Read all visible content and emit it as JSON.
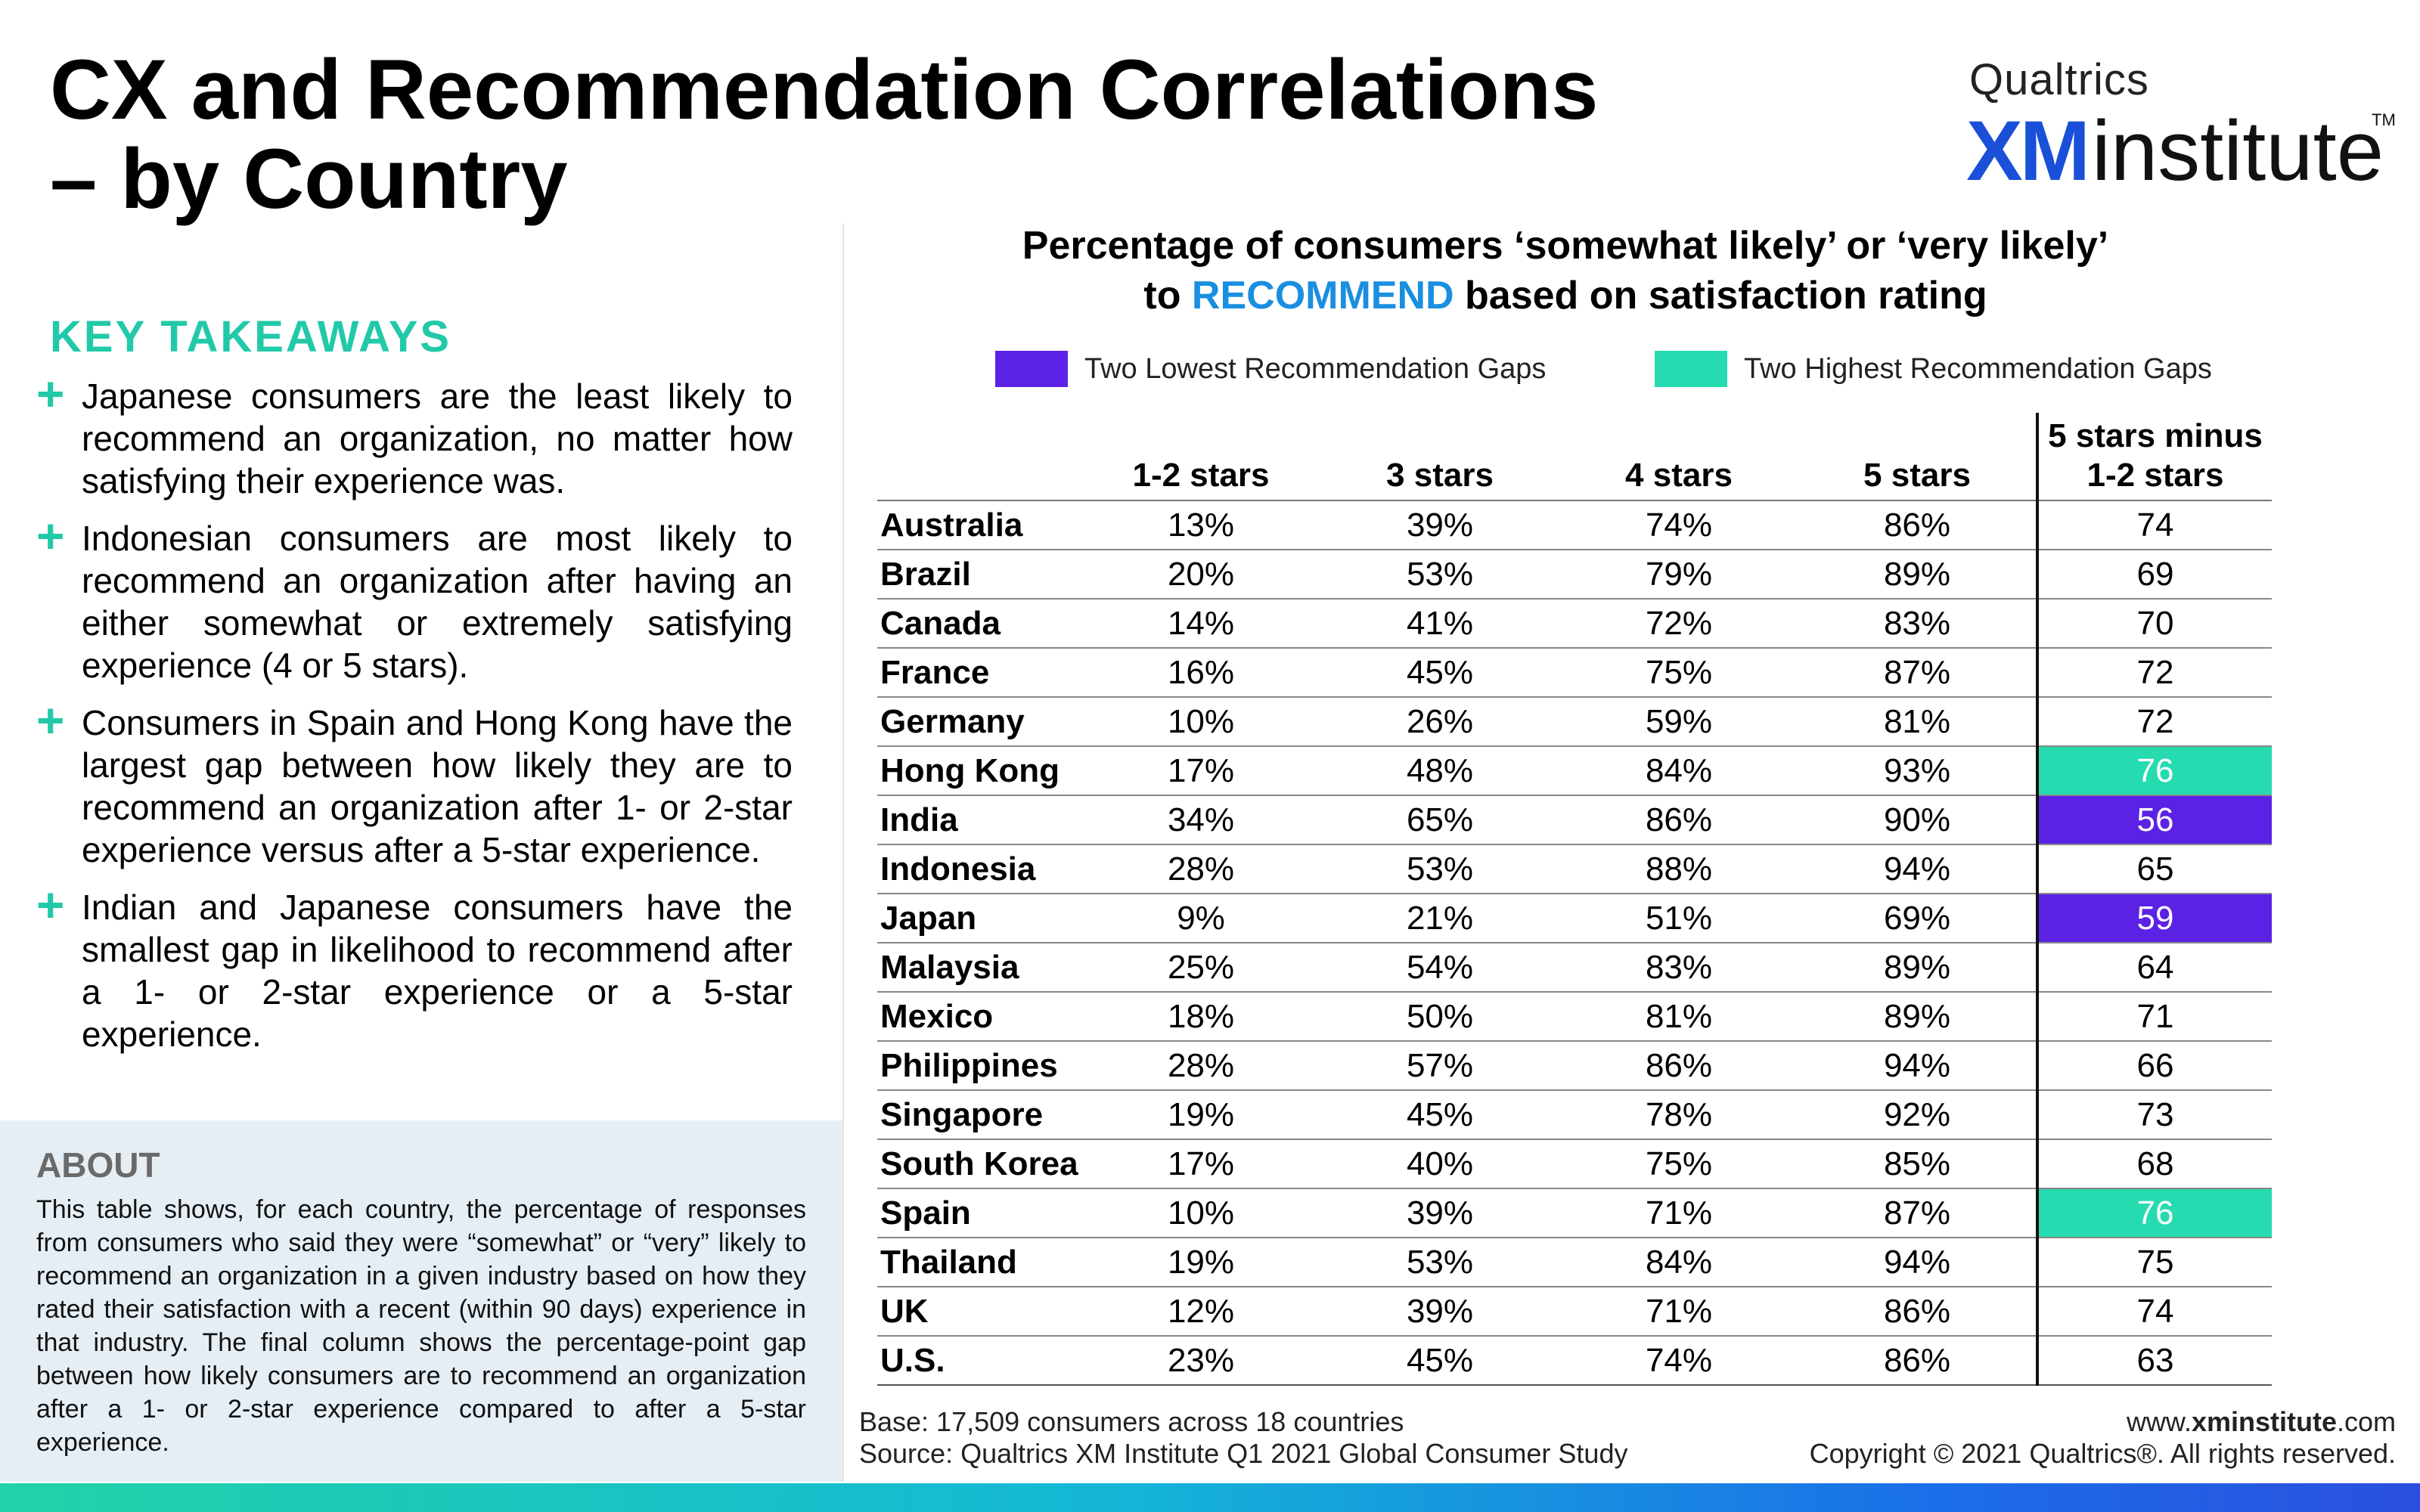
{
  "title": {
    "line1": "CX and Recommendation Correlations",
    "line2": "– by Country"
  },
  "logo": {
    "top": "Qualtrics",
    "xm": "XM",
    "institute": "institute",
    "tm": "TM"
  },
  "key_takeaways": {
    "heading": "KEY TAKEAWAYS",
    "items": [
      "Japanese consumers are the least likely to recommend an organization, no matter how satisfying their experience was.",
      "Indonesian consumers are most likely to recommend an organization after having an either somewhat or extremely satisfying experience (4 or 5 stars).",
      "Consumers in Spain and Hong Kong have the largest gap between how likely they are to recommend an organization after 1- or 2-star experience versus after a 5-star experience.",
      "Indian and Japanese consumers have the smallest gap in likelihood to recommend after a 1- or 2-star experience or a 5-star experience."
    ]
  },
  "about": {
    "heading": "ABOUT",
    "text": "This table shows, for each country, the percentage of responses from consumers who said they were “somewhat” or “very” likely to recommend an organization in a given industry based on how they rated their satisfaction with a recent (within 90 days) experience in that industry. The final column shows the percentage-point gap between how likely consumers are to recommend an organization after a 1- or 2-star experience compared to after a 5-star experience."
  },
  "chart": {
    "title_line1": "Percentage of consumers ‘somewhat likely’ or ‘very likely’",
    "title_line2_pre": "to ",
    "title_line2_accent": "RECOMMEND",
    "title_line2_post": " based on satisfaction rating",
    "accent_color": "#1a8fe0"
  },
  "legend": {
    "low": {
      "label": "Two Lowest Recommendation Gaps",
      "color": "#5b22e6"
    },
    "high": {
      "label": "Two Highest Recommendation Gaps",
      "color": "#26dbb0"
    }
  },
  "chart_data": {
    "type": "table",
    "columns": [
      "",
      "1-2 stars",
      "3 stars",
      "4 stars",
      "5 stars",
      "5 stars minus 1-2 stars"
    ],
    "rows": [
      {
        "country": "Australia",
        "s12": "13%",
        "s3": "39%",
        "s4": "74%",
        "s5": "86%",
        "gap": "74",
        "highlight": ""
      },
      {
        "country": "Brazil",
        "s12": "20%",
        "s3": "53%",
        "s4": "79%",
        "s5": "89%",
        "gap": "69",
        "highlight": ""
      },
      {
        "country": "Canada",
        "s12": "14%",
        "s3": "41%",
        "s4": "72%",
        "s5": "83%",
        "gap": "70",
        "highlight": ""
      },
      {
        "country": "France",
        "s12": "16%",
        "s3": "45%",
        "s4": "75%",
        "s5": "87%",
        "gap": "72",
        "highlight": ""
      },
      {
        "country": "Germany",
        "s12": "10%",
        "s3": "26%",
        "s4": "59%",
        "s5": "81%",
        "gap": "72",
        "highlight": ""
      },
      {
        "country": "Hong Kong",
        "s12": "17%",
        "s3": "48%",
        "s4": "84%",
        "s5": "93%",
        "gap": "76",
        "highlight": "high"
      },
      {
        "country": "India",
        "s12": "34%",
        "s3": "65%",
        "s4": "86%",
        "s5": "90%",
        "gap": "56",
        "highlight": "low"
      },
      {
        "country": "Indonesia",
        "s12": "28%",
        "s3": "53%",
        "s4": "88%",
        "s5": "94%",
        "gap": "65",
        "highlight": ""
      },
      {
        "country": "Japan",
        "s12": "9%",
        "s3": "21%",
        "s4": "51%",
        "s5": "69%",
        "gap": "59",
        "highlight": "low"
      },
      {
        "country": "Malaysia",
        "s12": "25%",
        "s3": "54%",
        "s4": "83%",
        "s5": "89%",
        "gap": "64",
        "highlight": ""
      },
      {
        "country": "Mexico",
        "s12": "18%",
        "s3": "50%",
        "s4": "81%",
        "s5": "89%",
        "gap": "71",
        "highlight": ""
      },
      {
        "country": "Philippines",
        "s12": "28%",
        "s3": "57%",
        "s4": "86%",
        "s5": "94%",
        "gap": "66",
        "highlight": ""
      },
      {
        "country": "Singapore",
        "s12": "19%",
        "s3": "45%",
        "s4": "78%",
        "s5": "92%",
        "gap": "73",
        "highlight": ""
      },
      {
        "country": "South Korea",
        "s12": "17%",
        "s3": "40%",
        "s4": "75%",
        "s5": "85%",
        "gap": "68",
        "highlight": ""
      },
      {
        "country": "Spain",
        "s12": "10%",
        "s3": "39%",
        "s4": "71%",
        "s5": "87%",
        "gap": "76",
        "highlight": "high"
      },
      {
        "country": "Thailand",
        "s12": "19%",
        "s3": "53%",
        "s4": "84%",
        "s5": "94%",
        "gap": "75",
        "highlight": ""
      },
      {
        "country": "UK",
        "s12": "12%",
        "s3": "39%",
        "s4": "71%",
        "s5": "86%",
        "gap": "74",
        "highlight": ""
      },
      {
        "country": "U.S.",
        "s12": "23%",
        "s3": "45%",
        "s4": "74%",
        "s5": "86%",
        "gap": "63",
        "highlight": ""
      }
    ]
  },
  "footer": {
    "base": "Base: 17,509 consumers across 18 countries",
    "source": "Source: Qualtrics XM Institute Q1 2021 Global Consumer Study",
    "url_pre": "www.",
    "url_bold": "xminstitute",
    "url_post": ".com",
    "copyright": "Copyright © 2021 Qualtrics®. All rights reserved."
  }
}
